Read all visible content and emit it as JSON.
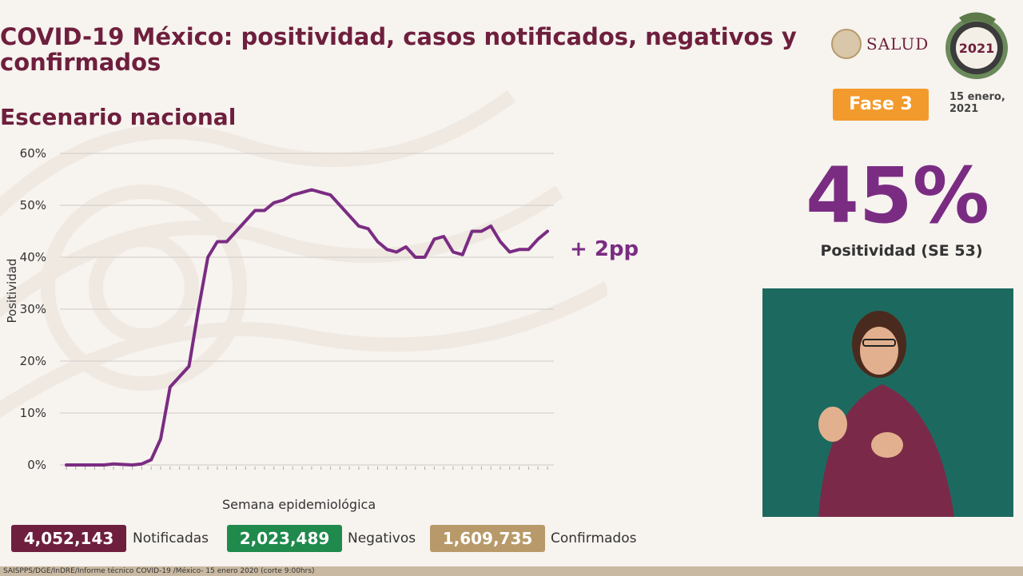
{
  "header": {
    "title": "COVID-19 México: positividad, casos notificados, negativos y confirmados",
    "subtitle": "Escenario nacional",
    "logo_text": "SALUD",
    "phase": "Fase 3",
    "date_line1": "15 enero,",
    "date_line2": "2021",
    "emblem_year": "2021"
  },
  "kpi": {
    "value": "45%",
    "label": "Positividad (SE 53)"
  },
  "chart_data": {
    "type": "line",
    "title": "",
    "xlabel": "Semana epidemiológica",
    "ylabel": "Positividad",
    "ylim": [
      0,
      60
    ],
    "yticks": [
      "0%",
      "10%",
      "20%",
      "30%",
      "40%",
      "50%",
      "60%"
    ],
    "annotation": "+ 2pp",
    "series": [
      {
        "color": "#7a2c82",
        "values": [
          0,
          0,
          0,
          0,
          0,
          0.2,
          0.1,
          0,
          0.2,
          1,
          5,
          15,
          17,
          19,
          30,
          40,
          43,
          43,
          45,
          47,
          49,
          49,
          50.5,
          51,
          52,
          52.5,
          53,
          52.5,
          52,
          50,
          48,
          46,
          45.5,
          43,
          41.5,
          41,
          42,
          40,
          40,
          43.5,
          44,
          41,
          40.5,
          45,
          45,
          46,
          43,
          41,
          41.5,
          41.5,
          43.5,
          45
        ]
      }
    ]
  },
  "totals": [
    {
      "value": "4,052,143",
      "label": "Notificadas",
      "color": "#6e1f3d"
    },
    {
      "value": "2,023,489",
      "label": "Negativos",
      "color": "#1f8a4c"
    },
    {
      "value": "1,609,735",
      "label": "Confirmados",
      "color": "#b89a6a"
    }
  ],
  "footer": {
    "source": "SAISPPS/DGE/InDRE/Informe técnico COVID-19 /México- 15 enero 2020 (corte 9:00hrs)"
  }
}
